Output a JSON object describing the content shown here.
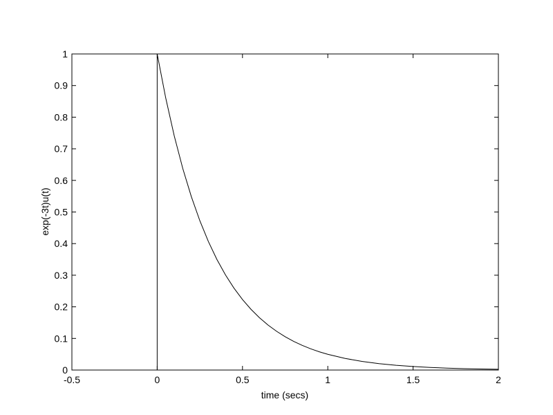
{
  "chart_data": {
    "type": "line",
    "title": "",
    "xlabel": "time (secs)",
    "ylabel": "exp(-3t)u(t)",
    "xlim": [
      -0.5,
      2
    ],
    "ylim": [
      0,
      1
    ],
    "grid": false,
    "line_color": "#000000",
    "background": "#ffffff",
    "xticks": [
      "-0.5",
      "0",
      "0.5",
      "1",
      "1.5",
      "2"
    ],
    "yticks": [
      "0",
      "0.1",
      "0.2",
      "0.3",
      "0.4",
      "0.5",
      "0.6",
      "0.7",
      "0.8",
      "0.9",
      "1"
    ],
    "series": [
      {
        "x": [
          -0.5,
          0,
          0,
          0.05,
          0.1,
          0.15,
          0.2,
          0.25,
          0.3,
          0.35,
          0.4,
          0.45,
          0.5,
          0.55,
          0.6,
          0.65,
          0.7,
          0.75,
          0.8,
          0.85,
          0.9,
          0.95,
          1.0,
          1.1,
          1.2,
          1.3,
          1.4,
          1.5,
          1.6,
          1.7,
          1.8,
          1.9,
          2.0
        ],
        "y": [
          0,
          0,
          1,
          0.8607,
          0.7408,
          0.6376,
          0.5488,
          0.4724,
          0.4066,
          0.3499,
          0.3012,
          0.2592,
          0.2231,
          0.192,
          0.1653,
          0.1423,
          0.1225,
          0.1054,
          0.0907,
          0.0781,
          0.0672,
          0.0578,
          0.0498,
          0.0369,
          0.0273,
          0.0202,
          0.015,
          0.0111,
          0.0082,
          0.0061,
          0.0045,
          0.0033,
          0.0025
        ]
      }
    ]
  }
}
